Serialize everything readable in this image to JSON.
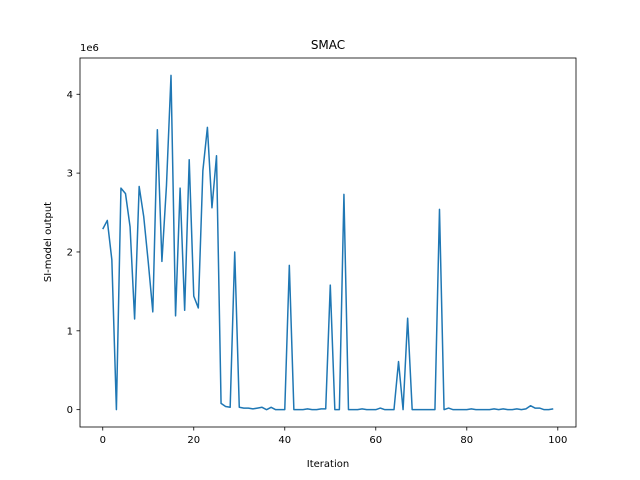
{
  "chart_data": {
    "type": "line",
    "title": "SMAC",
    "xlabel": "Iteration",
    "ylabel": "SI-model output",
    "offset_text": "1e6",
    "xlim": [
      -5,
      104
    ],
    "ylim": [
      -220000,
      4460000
    ],
    "xticks": [
      0,
      20,
      40,
      60,
      80,
      100
    ],
    "xtick_labels": [
      "0",
      "20",
      "40",
      "60",
      "80",
      "100"
    ],
    "yticks": [
      0,
      1000000,
      2000000,
      3000000,
      4000000
    ],
    "ytick_labels": [
      "0",
      "1",
      "2",
      "3",
      "4"
    ],
    "grid": false,
    "line_color": "#1f77b4",
    "series": [
      {
        "x": [
          0,
          1,
          2,
          3,
          4,
          5,
          6,
          7,
          8,
          9,
          10,
          11,
          12,
          13,
          14,
          15,
          16,
          17,
          18,
          19,
          20,
          21,
          22,
          23,
          24,
          25,
          26,
          27,
          28,
          29,
          30,
          31,
          32,
          33,
          34,
          35,
          36,
          37,
          38,
          39,
          40,
          41,
          42,
          43,
          44,
          45,
          46,
          47,
          48,
          49,
          50,
          51,
          52,
          53,
          54,
          55,
          56,
          57,
          58,
          59,
          60,
          61,
          62,
          63,
          64,
          65,
          66,
          67,
          68,
          69,
          70,
          71,
          72,
          73,
          74,
          75,
          76,
          77,
          78,
          79,
          80,
          81,
          82,
          83,
          84,
          85,
          86,
          87,
          88,
          89,
          90,
          91,
          92,
          93,
          94,
          95,
          96,
          97,
          98,
          99
        ],
        "values": [
          2290000,
          2400000,
          1900000,
          0,
          2810000,
          2740000,
          2320000,
          1150000,
          2830000,
          2450000,
          1870000,
          1240000,
          3550000,
          1880000,
          2840000,
          4240000,
          1190000,
          2810000,
          1260000,
          3170000,
          1440000,
          1290000,
          3030000,
          3580000,
          2560000,
          3220000,
          80000,
          40000,
          30000,
          2000000,
          30000,
          20000,
          20000,
          10000,
          20000,
          30000,
          0,
          30000,
          0,
          0,
          0,
          1830000,
          0,
          0,
          0,
          10000,
          0,
          0,
          10000,
          10000,
          1580000,
          0,
          0,
          2730000,
          0,
          0,
          0,
          10000,
          0,
          0,
          0,
          20000,
          0,
          0,
          0,
          610000,
          0,
          1160000,
          0,
          0,
          0,
          0,
          0,
          0,
          2540000,
          0,
          20000,
          0,
          0,
          0,
          0,
          10000,
          0,
          0,
          0,
          0,
          10000,
          0,
          10000,
          0,
          0,
          10000,
          0,
          10000,
          50000,
          20000,
          20000,
          0,
          0,
          10000
        ]
      }
    ]
  }
}
